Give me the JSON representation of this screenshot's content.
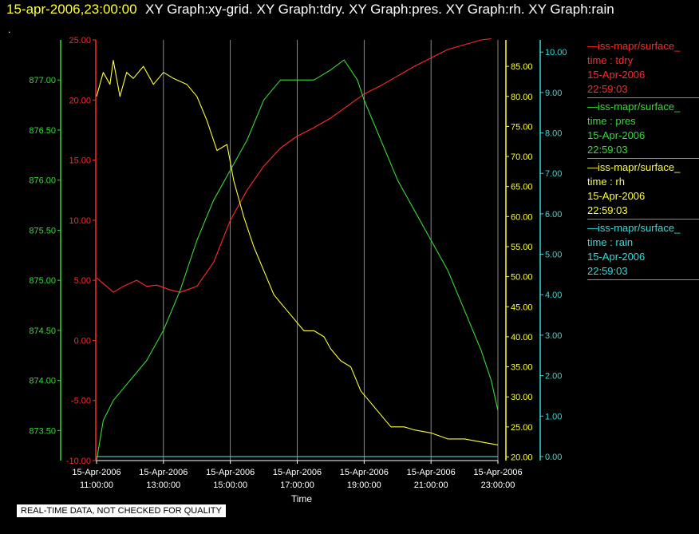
{
  "header": {
    "datetime": "15-apr-2006,23:00:00",
    "title": "XY Graph:xy-grid.  XY Graph:tdry.  XY Graph:pres.  XY Graph:rh.  XY Graph:rain"
  },
  "misc": {
    "dot": "."
  },
  "disclaimer": "REAL-TIME DATA, NOT CHECKED FOR QUALITY",
  "colors": {
    "tdry": "#ff2a2a",
    "pres": "#33dd33",
    "rh": "#ffff33",
    "rain": "#33dddd",
    "grid": "#aaaaaa",
    "background": "#000000"
  },
  "legend": [
    {
      "series": "tdry",
      "name": "—iss-mapr/surface_",
      "line2": "time : tdry",
      "line3": "15-Apr-2006",
      "line4": "22:59:03"
    },
    {
      "series": "pres",
      "name": "—iss-mapr/surface_",
      "line2": "time : pres",
      "line3": "15-Apr-2006",
      "line4": "22:59:03"
    },
    {
      "series": "rh",
      "name": "—iss-mapr/surface_",
      "line2": "time : rh",
      "line3": "15-Apr-2006",
      "line4": "22:59:03"
    },
    {
      "series": "rain",
      "name": "—iss-mapr/surface_",
      "line2": "time : rain",
      "line3": "15-Apr-2006",
      "line4": "22:59:03"
    }
  ],
  "chart_data": {
    "type": "line",
    "xlabel": "Time",
    "x_ticks": [
      {
        "date": "15-Apr-2006",
        "time": "11:00:00",
        "hour": 11
      },
      {
        "date": "15-Apr-2006",
        "time": "13:00:00",
        "hour": 13
      },
      {
        "date": "15-Apr-2006",
        "time": "15:00:00",
        "hour": 15
      },
      {
        "date": "15-Apr-2006",
        "time": "17:00:00",
        "hour": 17
      },
      {
        "date": "15-Apr-2006",
        "time": "19:00:00",
        "hour": 19
      },
      {
        "date": "15-Apr-2006",
        "time": "21:00:00",
        "hour": 21
      },
      {
        "date": "15-Apr-2006",
        "time": "23:00:00",
        "hour": 23
      }
    ],
    "xlim": [
      11,
      23
    ],
    "axes": {
      "tdry": {
        "side": "left",
        "ylim": [
          -10,
          25
        ],
        "ticks": [
          "-10.00",
          "-5.00",
          "0.00",
          "5.00",
          "10.00",
          "15.00",
          "20.00",
          "25.00"
        ]
      },
      "pres": {
        "side": "left",
        "ylim": [
          873.2,
          877.4
        ],
        "ticks": [
          "873.50",
          "874.00",
          "874.50",
          "875.00",
          "875.50",
          "876.00",
          "876.50",
          "877.00"
        ]
      },
      "rh": {
        "side": "right",
        "ylim": [
          19.4,
          89.4
        ],
        "ticks": [
          "20.00",
          "25.00",
          "30.00",
          "35.00",
          "40.00",
          "45.00",
          "50.00",
          "55.00",
          "60.00",
          "65.00",
          "70.00",
          "75.00",
          "80.00",
          "85.00"
        ]
      },
      "rain": {
        "side": "right",
        "ylim": [
          -0.1,
          10.3
        ],
        "ticks": [
          "0.00",
          "1.00",
          "2.00",
          "3.00",
          "4.00",
          "5.00",
          "6.00",
          "7.00",
          "8.00",
          "9.00",
          "10.00"
        ]
      }
    },
    "series": [
      {
        "name": "tdry",
        "points": [
          [
            11,
            5.2
          ],
          [
            11.3,
            4.5
          ],
          [
            11.5,
            4.0
          ],
          [
            11.8,
            4.5
          ],
          [
            12.2,
            5.0
          ],
          [
            12.5,
            4.5
          ],
          [
            12.8,
            4.6
          ],
          [
            13.2,
            4.2
          ],
          [
            13.5,
            4.0
          ],
          [
            14,
            4.5
          ],
          [
            14.5,
            6.5
          ],
          [
            15,
            10
          ],
          [
            15.5,
            12.5
          ],
          [
            16,
            14.5
          ],
          [
            16.5,
            16
          ],
          [
            17,
            17
          ],
          [
            17.5,
            17.7
          ],
          [
            18,
            18.5
          ],
          [
            18.5,
            19.5
          ],
          [
            19,
            20.5
          ],
          [
            19.5,
            21.2
          ],
          [
            20,
            22
          ],
          [
            20.5,
            22.8
          ],
          [
            21,
            23.5
          ],
          [
            21.5,
            24.2
          ],
          [
            22,
            24.6
          ],
          [
            22.5,
            25
          ],
          [
            22.8,
            25.1
          ]
        ]
      },
      {
        "name": "pres",
        "points": [
          [
            11,
            873.2
          ],
          [
            11.2,
            873.6
          ],
          [
            11.5,
            873.8
          ],
          [
            12,
            874.0
          ],
          [
            12.5,
            874.2
          ],
          [
            13,
            874.5
          ],
          [
            13.5,
            874.9
          ],
          [
            14,
            875.4
          ],
          [
            14.5,
            875.8
          ],
          [
            15,
            876.1
          ],
          [
            15.5,
            876.4
          ],
          [
            16,
            876.8
          ],
          [
            16.5,
            877.0
          ],
          [
            17,
            877.0
          ],
          [
            17.5,
            877.0
          ],
          [
            18,
            877.1
          ],
          [
            18.4,
            877.2
          ],
          [
            18.8,
            877.0
          ],
          [
            19,
            876.8
          ],
          [
            19.5,
            876.4
          ],
          [
            20,
            876.0
          ],
          [
            20.5,
            875.7
          ],
          [
            21,
            875.4
          ],
          [
            21.5,
            875.1
          ],
          [
            22,
            874.7
          ],
          [
            22.5,
            874.3
          ],
          [
            22.8,
            874.0
          ],
          [
            23,
            873.7
          ]
        ]
      },
      {
        "name": "rh",
        "points": [
          [
            11,
            80
          ],
          [
            11.2,
            84
          ],
          [
            11.4,
            82
          ],
          [
            11.5,
            86
          ],
          [
            11.7,
            80
          ],
          [
            11.9,
            84
          ],
          [
            12.1,
            83
          ],
          [
            12.4,
            85
          ],
          [
            12.7,
            82
          ],
          [
            13,
            84
          ],
          [
            13.3,
            83
          ],
          [
            13.7,
            82
          ],
          [
            14,
            80
          ],
          [
            14.3,
            76
          ],
          [
            14.6,
            71
          ],
          [
            14.9,
            72
          ],
          [
            15.1,
            66
          ],
          [
            15.4,
            60
          ],
          [
            15.7,
            55
          ],
          [
            16,
            51
          ],
          [
            16.3,
            47
          ],
          [
            16.6,
            45
          ],
          [
            16.9,
            43
          ],
          [
            17.2,
            41
          ],
          [
            17.5,
            41
          ],
          [
            17.8,
            40
          ],
          [
            18,
            38
          ],
          [
            18.3,
            36
          ],
          [
            18.6,
            35
          ],
          [
            18.9,
            31
          ],
          [
            19.2,
            29
          ],
          [
            19.5,
            27
          ],
          [
            19.8,
            25
          ],
          [
            20.2,
            25
          ],
          [
            20.5,
            24.5
          ],
          [
            21,
            24
          ],
          [
            21.5,
            23
          ],
          [
            22,
            23
          ],
          [
            22.5,
            22.5
          ],
          [
            23,
            22
          ]
        ]
      },
      {
        "name": "rain",
        "points": [
          [
            11,
            0
          ],
          [
            23,
            0
          ]
        ]
      }
    ]
  }
}
